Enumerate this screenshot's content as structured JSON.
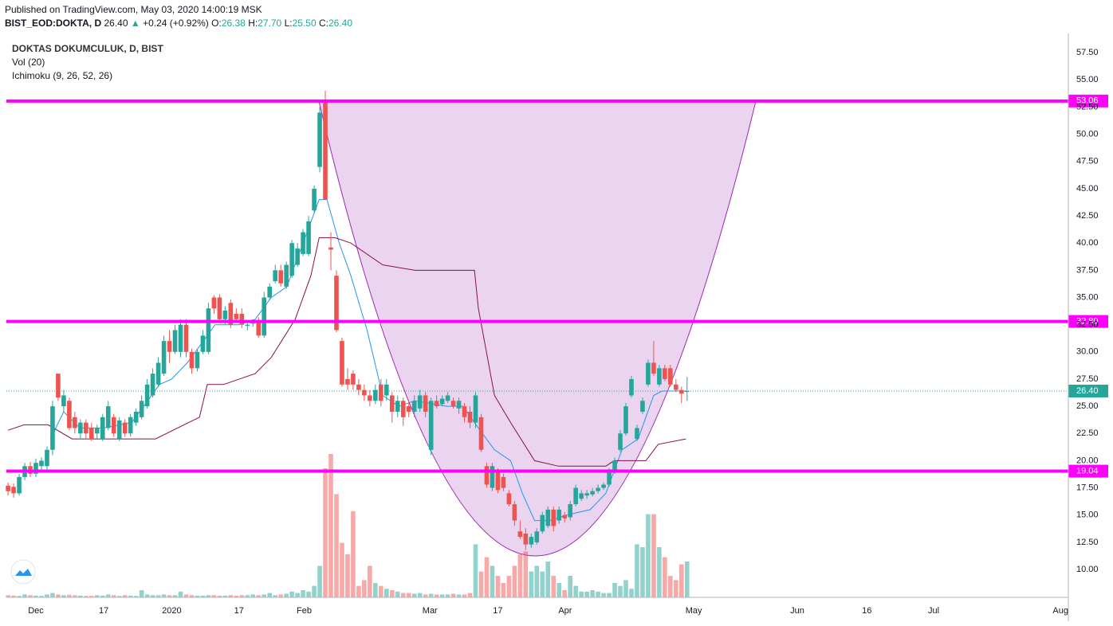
{
  "header": {
    "published": "Published on TradingView.com, May 03, 2020 14:00:19 MSK",
    "symbol": "BIST_EOD:DOKTA, D",
    "last": "26.40",
    "arrow": "▲",
    "change": "+0.24 (+0.92%)",
    "o_label": "O:",
    "o": "26.38",
    "h_label": "H:",
    "h": "27.70",
    "l_label": "L:",
    "l": "25.50",
    "c_label": "C:",
    "c": "26.40"
  },
  "chart_data": {
    "type": "candlestick",
    "title": "DOKTAS DOKUMCULUK, D, BIST",
    "volume_label": "Vol (20)",
    "ichimoku_label": "Ichimoku (9, 26, 52, 26)",
    "up_color": "#26a69a",
    "down_color": "#ef5350",
    "xlim": [
      -0.3,
      190.5
    ],
    "xticks": [
      {
        "value": 5,
        "label": "Dec"
      },
      {
        "value": 17.2,
        "label": "17"
      },
      {
        "value": 29.4,
        "label": "2020"
      },
      {
        "value": 41.5,
        "label": "17"
      },
      {
        "value": 53.2,
        "label": "Feb"
      },
      {
        "value": 75.8,
        "label": "Mar"
      },
      {
        "value": 88,
        "label": "17"
      },
      {
        "value": 100.1,
        "label": "Apr"
      },
      {
        "value": 123.2,
        "label": "May"
      },
      {
        "value": 141.8,
        "label": "Jun"
      },
      {
        "value": 154.3,
        "label": "16"
      },
      {
        "value": 166.3,
        "label": "Jul"
      },
      {
        "value": 189.1,
        "label": "Aug"
      }
    ],
    "ylim": [
      7.44,
      59.27
    ],
    "yticks": [
      {
        "value": 10,
        "label": "10.00"
      },
      {
        "value": 12.5,
        "label": "12.50"
      },
      {
        "value": 15,
        "label": "15.00"
      },
      {
        "value": 17.5,
        "label": "17.50"
      },
      {
        "value": 20,
        "label": "20.00"
      },
      {
        "value": 22.5,
        "label": "22.50"
      },
      {
        "value": 25,
        "label": "25.00"
      },
      {
        "value": 27.5,
        "label": "27.50"
      },
      {
        "value": 30,
        "label": "30.00"
      },
      {
        "value": 32.5,
        "label": "32.50"
      },
      {
        "value": 35,
        "label": "35.00"
      },
      {
        "value": 37.5,
        "label": "37.50"
      },
      {
        "value": 40,
        "label": "40.00"
      },
      {
        "value": 42.5,
        "label": "42.50"
      },
      {
        "value": 45,
        "label": "45.00"
      },
      {
        "value": 47.5,
        "label": "47.50"
      },
      {
        "value": 50,
        "label": "50.00"
      },
      {
        "value": 52.5,
        "label": "52.50"
      },
      {
        "value": 55,
        "label": "55.00"
      },
      {
        "value": 57.5,
        "label": "57.50"
      }
    ],
    "grid": true,
    "ohlc": [
      [
        17.7,
        18.0,
        16.8,
        17.2
      ],
      [
        17.6,
        17.9,
        16.6,
        17.0
      ],
      [
        17.0,
        18.8,
        16.8,
        18.5
      ],
      [
        18.5,
        19.8,
        18.2,
        19.5
      ],
      [
        19.5,
        19.9,
        18.5,
        18.8
      ],
      [
        18.8,
        20.2,
        18.5,
        19.8
      ],
      [
        19.5,
        20.3,
        19.0,
        20.0
      ],
      [
        19.5,
        21.3,
        19.2,
        21.0
      ],
      [
        21.0,
        25.5,
        20.5,
        25.0
      ],
      [
        28.0,
        28.0,
        25.5,
        25.8
      ],
      [
        25.0,
        26.5,
        24.5,
        26.0
      ],
      [
        25.5,
        25.8,
        22.8,
        23.0
      ],
      [
        24.0,
        24.5,
        22.5,
        23.0
      ],
      [
        22.5,
        23.8,
        22.0,
        23.5
      ],
      [
        23.5,
        23.8,
        22.0,
        22.5
      ],
      [
        23.0,
        23.5,
        21.8,
        22.0
      ],
      [
        22.5,
        23.3,
        22.0,
        23.0
      ],
      [
        22.0,
        24.3,
        21.8,
        24.0
      ],
      [
        23.0,
        25.5,
        22.8,
        25.0
      ],
      [
        24.0,
        24.3,
        22.2,
        22.5
      ],
      [
        22.0,
        24.0,
        21.8,
        23.7
      ],
      [
        23.5,
        23.8,
        22.2,
        22.5
      ],
      [
        22.5,
        24.3,
        22.2,
        24.0
      ],
      [
        23.5,
        24.8,
        23.2,
        24.5
      ],
      [
        24.0,
        26.0,
        23.8,
        25.5
      ],
      [
        25.0,
        27.5,
        24.8,
        27.0
      ],
      [
        26.0,
        28.5,
        25.8,
        28.0
      ],
      [
        27.0,
        29.5,
        26.8,
        29.0
      ],
      [
        28.0,
        31.5,
        27.8,
        31.0
      ],
      [
        31.0,
        32.0,
        29.0,
        30.0
      ],
      [
        30.0,
        32.5,
        29.8,
        32.0
      ],
      [
        30.0,
        33.0,
        29.5,
        32.5
      ],
      [
        32.5,
        33.0,
        29.5,
        30.0
      ],
      [
        30.0,
        30.3,
        28.0,
        28.5
      ],
      [
        28.5,
        30.3,
        28.2,
        30.0
      ],
      [
        30.0,
        32.0,
        29.8,
        31.5
      ],
      [
        30.0,
        34.5,
        29.8,
        34.0
      ],
      [
        35.0,
        35.2,
        33.5,
        34.0
      ],
      [
        35.0,
        35.3,
        32.8,
        33.0
      ],
      [
        33.0,
        34.2,
        32.5,
        33.8
      ],
      [
        34.5,
        34.8,
        32.2,
        32.5
      ],
      [
        33.5,
        34.0,
        32.8,
        33.0
      ],
      [
        33.5,
        34.0,
        32.2,
        32.5
      ],
      [
        32.4,
        32.8,
        32.0,
        32.5
      ],
      [
        32.6,
        33.0,
        32.3,
        32.8
      ],
      [
        32.8,
        33.2,
        31.3,
        31.5
      ],
      [
        31.5,
        35.5,
        31.3,
        35.0
      ],
      [
        35.0,
        36.3,
        34.8,
        36.0
      ],
      [
        36.5,
        38.0,
        36.3,
        37.5
      ],
      [
        37.5,
        38.0,
        36.0,
        36.3
      ],
      [
        36.0,
        38.3,
        35.8,
        38.0
      ],
      [
        37.0,
        40.3,
        36.8,
        40.0
      ],
      [
        38.0,
        40.0,
        37.8,
        39.5
      ],
      [
        39.0,
        41.3,
        38.8,
        41.0
      ],
      [
        39.0,
        42.5,
        38.8,
        42.0
      ],
      [
        43.0,
        45.3,
        42.8,
        45.0
      ],
      [
        47.0,
        52.5,
        46.5,
        52.0
      ],
      [
        53.06,
        54.0,
        44.0,
        44.0
      ],
      [
        39.6,
        41.0,
        37.5,
        39.4
      ],
      [
        37.0,
        37.5,
        31.8,
        32.0
      ],
      [
        31.0,
        31.3,
        26.8,
        27.0
      ],
      [
        27.5,
        28.5,
        26.5,
        27.0
      ],
      [
        28.0,
        28.3,
        26.5,
        27.0
      ],
      [
        27.0,
        27.5,
        26.0,
        26.5
      ],
      [
        26.5,
        27.0,
        25.5,
        26.0
      ],
      [
        26.0,
        26.5,
        25.0,
        25.5
      ],
      [
        25.5,
        27.0,
        25.2,
        26.5
      ],
      [
        27.0,
        27.5,
        25.0,
        25.5
      ],
      [
        26.0,
        27.5,
        25.5,
        27.0
      ],
      [
        26.0,
        26.3,
        23.5,
        24.5
      ],
      [
        24.5,
        26.0,
        24.0,
        25.5
      ],
      [
        25.5,
        25.8,
        23.2,
        24.0
      ],
      [
        25.0,
        25.5,
        24.0,
        24.5
      ],
      [
        24.5,
        26.0,
        24.0,
        25.5
      ],
      [
        24.8,
        26.5,
        24.5,
        26.0
      ],
      [
        26.0,
        26.3,
        24.0,
        24.5
      ],
      [
        21.0,
        25.8,
        20.5,
        25.5
      ],
      [
        25.5,
        26.0,
        24.8,
        25.0
      ],
      [
        25.2,
        26.0,
        25.0,
        25.7
      ],
      [
        25.5,
        26.3,
        25.3,
        26.0
      ],
      [
        25.5,
        25.8,
        24.8,
        25.0
      ],
      [
        24.8,
        25.8,
        24.3,
        25.5
      ],
      [
        25.0,
        25.3,
        23.5,
        24.0
      ],
      [
        24.5,
        25.0,
        23.0,
        23.5
      ],
      [
        23.5,
        26.3,
        23.0,
        26.0
      ],
      [
        24.0,
        24.3,
        20.8,
        21.0
      ],
      [
        19.5,
        19.8,
        17.5,
        17.8
      ],
      [
        17.5,
        19.8,
        17.2,
        19.5
      ],
      [
        19.0,
        19.3,
        17.0,
        17.3
      ],
      [
        18.5,
        18.8,
        17.2,
        17.5
      ],
      [
        17.0,
        17.3,
        15.8,
        16.0
      ],
      [
        16.0,
        16.3,
        14.0,
        14.5
      ],
      [
        13.5,
        14.5,
        12.8,
        13.0
      ],
      [
        13.3,
        13.8,
        11.8,
        12.3
      ],
      [
        12.3,
        13.3,
        12.0,
        13.0
      ],
      [
        12.5,
        13.8,
        12.3,
        13.5
      ],
      [
        13.5,
        15.3,
        13.3,
        15.0
      ],
      [
        14.0,
        15.8,
        13.8,
        15.5
      ],
      [
        15.5,
        15.8,
        13.5,
        14.0
      ],
      [
        14.5,
        15.8,
        14.2,
        15.5
      ],
      [
        15.0,
        15.3,
        14.3,
        14.7
      ],
      [
        14.8,
        16.3,
        14.5,
        16.0
      ],
      [
        16.0,
        17.8,
        15.8,
        17.5
      ],
      [
        16.5,
        17.3,
        16.3,
        17.0
      ],
      [
        16.8,
        17.3,
        16.5,
        17.0
      ],
      [
        16.9,
        17.5,
        16.7,
        17.2
      ],
      [
        17.2,
        17.8,
        17.0,
        17.5
      ],
      [
        17.5,
        18.0,
        17.3,
        17.8
      ],
      [
        17.8,
        19.3,
        17.6,
        19.0
      ],
      [
        19.0,
        20.3,
        18.8,
        20.0
      ],
      [
        21.0,
        22.8,
        20.8,
        22.5
      ],
      [
        22.5,
        25.3,
        22.3,
        25.0
      ],
      [
        26.0,
        27.8,
        25.8,
        27.5
      ],
      [
        22.0,
        23.3,
        21.8,
        23.0
      ],
      [
        24.5,
        25.8,
        24.3,
        25.5
      ],
      [
        27.0,
        29.3,
        26.8,
        29.0
      ],
      [
        29.0,
        31.0,
        27.8,
        28.0
      ],
      [
        27.0,
        28.8,
        26.8,
        28.5
      ],
      [
        28.5,
        28.8,
        27.3,
        27.5
      ],
      [
        28.5,
        28.8,
        26.8,
        27.0
      ],
      [
        27.0,
        27.5,
        26.3,
        26.5
      ],
      [
        26.5,
        26.8,
        25.3,
        26.16
      ],
      [
        26.38,
        27.7,
        25.5,
        26.4
      ]
    ],
    "volume": [
      1.5,
      1.2,
      1,
      2,
      1.5,
      1.2,
      1,
      2,
      3,
      2,
      1.5,
      1.8,
      1.5,
      1.2,
      1,
      1,
      1.5,
      1.2,
      2,
      1.5,
      1,
      1.5,
      1.2,
      1,
      5,
      2,
      1.5,
      1.5,
      2,
      1.5,
      1.5,
      4,
      2,
      1.5,
      1.2,
      1.2,
      1.5,
      1.5,
      1.2,
      1.2,
      1.5,
      1.2,
      1.5,
      1.5,
      2,
      1.5,
      2,
      3,
      1.5,
      2,
      2.5,
      4,
      3,
      5,
      4,
      8,
      22,
      90,
      100,
      72,
      38,
      30,
      60,
      8,
      12,
      22,
      10,
      8,
      6,
      5,
      4,
      3,
      3,
      2.5,
      3,
      2,
      2.5,
      2,
      2,
      2,
      2.5,
      2,
      2,
      3,
      37,
      18,
      28,
      22,
      15,
      10,
      15,
      22,
      30,
      32,
      18,
      22,
      18,
      25,
      15,
      10,
      5,
      15,
      8,
      4,
      4,
      5,
      4,
      3,
      3,
      10,
      8,
      12,
      6,
      37,
      35,
      58,
      58,
      35,
      28,
      15,
      12,
      23,
      25
    ],
    "lines": [
      {
        "color": "#2196f3",
        "x": [
          7.6,
          10,
          12.9,
          17.2,
          22.2,
          24.4,
          27.2,
          29.4,
          32.2,
          35.1,
          37.2,
          41.5,
          44.4,
          47.3,
          50.1,
          53,
          55.9,
          57.3,
          59.5,
          61.6,
          64.5,
          67.3,
          70.2,
          73.1,
          78.8,
          81.7,
          84.5,
          87.4,
          90.3,
          92.4,
          94.6,
          97.4,
          100.3,
          104.6,
          107.4,
          110.3,
          113.2,
          114.6,
          116,
          117.5,
          121.8
        ],
        "values": [
          22,
          24.5,
          23,
          23,
          23.5,
          25,
          27,
          27.5,
          29,
          31,
          32.5,
          32.5,
          33,
          35,
          36,
          40,
          44,
          44,
          40,
          37,
          32,
          26,
          25,
          25.5,
          25,
          25,
          23,
          21,
          20,
          17,
          14.5,
          14.5,
          15,
          15.5,
          17,
          21,
          22,
          24,
          26,
          26.4,
          26.4
        ]
      },
      {
        "color": "#880e4f",
        "x": [
          0,
          2.9,
          7.2,
          11.5,
          15.8,
          20.1,
          26.5,
          34.4,
          35.8,
          38.7,
          44.4,
          47.3,
          51.6,
          54.4,
          55.9,
          58.7,
          61.6,
          67.3,
          73.1,
          83.8,
          84.5,
          87.4,
          90.3,
          94.6,
          98.9,
          107.4,
          108.9,
          114.6,
          116.8,
          121.8
        ],
        "values": [
          22.8,
          23.3,
          23.3,
          22,
          22,
          22,
          22,
          24,
          27,
          27,
          28,
          29.5,
          33,
          37,
          40.5,
          40.5,
          40,
          38,
          37.5,
          37.5,
          34,
          26,
          23.5,
          20,
          19.5,
          19.5,
          20,
          20,
          21.5,
          22
        ]
      }
    ],
    "price_lines": [
      {
        "value": 53.06
      },
      {
        "value": 32.8,
        "label": "32.80"
      },
      {
        "value": 19.04
      }
    ],
    "price_line_color": "#ff00ff",
    "last_price": {
      "value": 26.4,
      "label": "26.40"
    }
  }
}
